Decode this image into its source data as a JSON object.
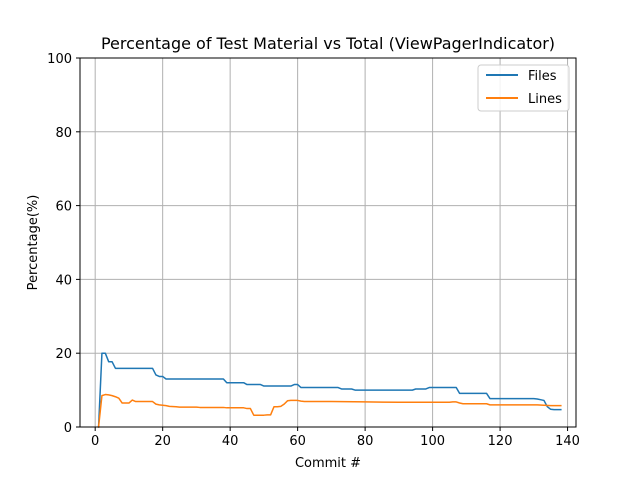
{
  "chart_data": {
    "type": "line",
    "title": "Percentage of Test Material vs Total (ViewPagerIndicator)",
    "xlabel": "Commit #",
    "ylabel": "Percentage(%)",
    "xlim": [
      -4.5,
      142.5
    ],
    "ylim": [
      0,
      100
    ],
    "xticks": [
      0,
      20,
      40,
      60,
      80,
      100,
      120,
      140
    ],
    "yticks": [
      0,
      20,
      40,
      60,
      80,
      100
    ],
    "xtick_labels": [
      "0",
      "20",
      "40",
      "60",
      "80",
      "100",
      "120",
      "140"
    ],
    "ytick_labels": [
      "0",
      "20",
      "40",
      "60",
      "80",
      "100"
    ],
    "grid": true,
    "legend_position": "top-right",
    "series": [
      {
        "name": "Files",
        "color": "#1f77b4",
        "x": [
          1,
          2,
          3,
          4,
          5,
          6,
          7,
          17,
          18,
          19,
          20,
          21,
          38,
          39,
          44,
          45,
          49,
          50,
          58,
          59,
          60,
          61,
          62,
          72,
          73,
          76,
          77,
          94,
          95,
          98,
          99,
          107,
          108,
          116,
          117,
          130,
          131,
          132,
          133,
          134,
          135,
          136,
          138
        ],
        "y": [
          0,
          20,
          20,
          17.7,
          17.7,
          15.9,
          15.9,
          15.9,
          14.1,
          13.7,
          13.7,
          13.0,
          13.0,
          12.0,
          12.0,
          11.5,
          11.5,
          11.1,
          11.1,
          11.5,
          11.5,
          10.7,
          10.7,
          10.7,
          10.3,
          10.3,
          10.0,
          10.0,
          10.3,
          10.3,
          10.7,
          10.7,
          9.1,
          9.1,
          7.7,
          7.7,
          7.6,
          7.4,
          7.2,
          5.5,
          4.8,
          4.7,
          4.7
        ]
      },
      {
        "name": "Lines",
        "color": "#ff7f0e",
        "x": [
          1,
          2,
          3,
          4,
          5,
          6,
          7,
          8,
          9,
          10,
          11,
          12,
          16,
          17,
          18,
          19,
          20,
          21,
          22,
          24,
          25,
          30,
          31,
          38,
          39,
          44,
          45,
          46,
          47,
          48,
          50,
          51,
          52,
          53,
          54,
          55,
          56,
          57,
          58,
          60,
          61,
          62,
          70,
          80,
          90,
          100,
          105,
          106,
          107,
          108,
          109,
          116,
          117,
          130,
          131,
          135,
          138
        ],
        "y": [
          0,
          8.5,
          8.8,
          8.7,
          8.5,
          8.2,
          7.8,
          6.5,
          6.5,
          6.5,
          7.3,
          6.9,
          6.9,
          6.9,
          6.2,
          6.0,
          5.9,
          5.8,
          5.6,
          5.5,
          5.4,
          5.4,
          5.3,
          5.3,
          5.2,
          5.2,
          5.0,
          5.0,
          3.2,
          3.2,
          3.2,
          3.3,
          3.3,
          5.5,
          5.5,
          5.6,
          6.2,
          7.1,
          7.2,
          7.2,
          7.0,
          6.9,
          6.9,
          6.8,
          6.7,
          6.7,
          6.7,
          6.8,
          6.8,
          6.5,
          6.3,
          6.3,
          6.0,
          6.0,
          6.0,
          5.8,
          5.8
        ]
      }
    ]
  }
}
